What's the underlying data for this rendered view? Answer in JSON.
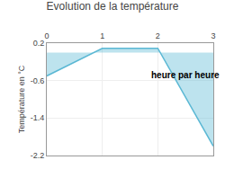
{
  "chart_data": {
    "type": "area",
    "title": "Evolution de la température",
    "y_label": "Température en °C",
    "x": [
      0,
      1,
      2,
      3
    ],
    "series": [
      {
        "color": "#5bb8d4",
        "values": [
          -0.5,
          0.09,
          0.09,
          -2.0
        ]
      }
    ],
    "xlim": [
      0,
      3
    ],
    "xticks": [
      0,
      1,
      2,
      3
    ],
    "ylim": [
      -2.2,
      0.2
    ],
    "yticks": [
      0.2,
      -0.6,
      -1.4,
      -2.2
    ],
    "grid": true,
    "annotations": [
      {
        "text": "heure par heure",
        "x": 1.85,
        "y": -0.48
      }
    ]
  }
}
